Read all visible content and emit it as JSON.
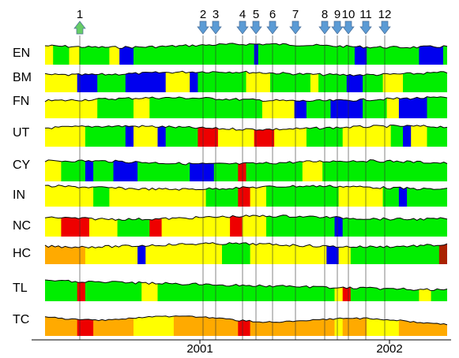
{
  "chart_data": {
    "type": "area",
    "x_axis": {
      "ticks": [
        "2001",
        "2002"
      ]
    },
    "colors": {
      "green": "#00ee00",
      "yellow": "#ffff00",
      "blue": "#0000ee",
      "red": "#ee0000",
      "orange": "#ffaa00",
      "dark_red": "#aa2200",
      "event_marker": "#5b9bd5",
      "highlight_marker": "#66cc66"
    },
    "event_markers": [
      {
        "label": "1",
        "direction": "up",
        "color": "highlight_marker"
      },
      {
        "label": "2",
        "direction": "down",
        "color": "event_marker"
      },
      {
        "label": "3",
        "direction": "down",
        "color": "event_marker"
      },
      {
        "label": "4",
        "direction": "down",
        "color": "event_marker"
      },
      {
        "label": "5",
        "direction": "down",
        "color": "event_marker"
      },
      {
        "label": "6",
        "direction": "down",
        "color": "event_marker"
      },
      {
        "label": "7",
        "direction": "down",
        "color": "event_marker"
      },
      {
        "label": "8",
        "direction": "down",
        "color": "event_marker"
      },
      {
        "label": "9",
        "direction": "down",
        "color": "event_marker"
      },
      {
        "label": "10",
        "direction": "down",
        "color": "event_marker"
      },
      {
        "label": "11",
        "direction": "down",
        "color": "event_marker"
      },
      {
        "label": "12",
        "direction": "down",
        "color": "event_marker"
      }
    ],
    "series": [
      {
        "name": "EN",
        "segments": [
          [
            "yellow",
            0.02
          ],
          [
            "green",
            0.06
          ],
          [
            "yellow",
            0.085
          ],
          [
            "green",
            0.16
          ],
          [
            "yellow",
            0.185
          ],
          [
            "blue",
            0.22
          ],
          [
            "green",
            0.52
          ],
          [
            "blue",
            0.53
          ],
          [
            "green",
            0.77
          ],
          [
            "blue",
            0.8
          ],
          [
            "green",
            0.93
          ],
          [
            "blue",
            0.99
          ],
          [
            "green",
            1.0
          ]
        ]
      },
      {
        "name": "BM",
        "segments": [
          [
            "yellow",
            0.08
          ],
          [
            "blue",
            0.13
          ],
          [
            "green",
            0.2
          ],
          [
            "blue",
            0.3
          ],
          [
            "yellow",
            0.36
          ],
          [
            "blue",
            0.38
          ],
          [
            "green",
            0.5
          ],
          [
            "yellow",
            0.56
          ],
          [
            "green",
            0.66
          ],
          [
            "yellow",
            0.68
          ],
          [
            "green",
            0.75
          ],
          [
            "blue",
            0.79
          ],
          [
            "green",
            0.84
          ],
          [
            "yellow",
            0.89
          ],
          [
            "green",
            1.0
          ]
        ]
      },
      {
        "name": "FN",
        "segments": [
          [
            "yellow",
            0.13
          ],
          [
            "green",
            0.22
          ],
          [
            "yellow",
            0.26
          ],
          [
            "green",
            0.54
          ],
          [
            "yellow",
            0.62
          ],
          [
            "blue",
            0.65
          ],
          [
            "green",
            0.71
          ],
          [
            "blue",
            0.79
          ],
          [
            "green",
            0.85
          ],
          [
            "yellow",
            0.88
          ],
          [
            "blue",
            0.95
          ],
          [
            "green",
            1.0
          ]
        ]
      },
      {
        "name": "UT",
        "segments": [
          [
            "yellow",
            0.1
          ],
          [
            "green",
            0.2
          ],
          [
            "blue",
            0.22
          ],
          [
            "yellow",
            0.28
          ],
          [
            "blue",
            0.3
          ],
          [
            "green",
            0.38
          ],
          [
            "red",
            0.43
          ],
          [
            "yellow",
            0.52
          ],
          [
            "red",
            0.57
          ],
          [
            "yellow",
            0.65
          ],
          [
            "green",
            0.74
          ],
          [
            "yellow",
            0.86
          ],
          [
            "green",
            0.89
          ],
          [
            "blue",
            0.91
          ],
          [
            "yellow",
            0.95
          ],
          [
            "green",
            1.0
          ]
        ]
      },
      {
        "name": "CY",
        "segments": [
          [
            "yellow",
            0.04
          ],
          [
            "green",
            0.1
          ],
          [
            "blue",
            0.12
          ],
          [
            "green",
            0.17
          ],
          [
            "blue",
            0.23
          ],
          [
            "green",
            0.36
          ],
          [
            "blue",
            0.42
          ],
          [
            "green",
            0.48
          ],
          [
            "red",
            0.5
          ],
          [
            "green",
            0.64
          ],
          [
            "yellow",
            0.69
          ],
          [
            "green",
            1.0
          ]
        ]
      },
      {
        "name": "IN",
        "segments": [
          [
            "yellow",
            0.12
          ],
          [
            "green",
            0.16
          ],
          [
            "yellow",
            0.4
          ],
          [
            "green",
            0.48
          ],
          [
            "red",
            0.51
          ],
          [
            "yellow",
            0.55
          ],
          [
            "green",
            0.73
          ],
          [
            "yellow",
            0.84
          ],
          [
            "green",
            0.88
          ],
          [
            "blue",
            0.9
          ],
          [
            "green",
            1.0
          ]
        ]
      },
      {
        "name": "NC",
        "segments": [
          [
            "yellow",
            0.04
          ],
          [
            "red",
            0.11
          ],
          [
            "yellow",
            0.18
          ],
          [
            "green",
            0.26
          ],
          [
            "red",
            0.29
          ],
          [
            "yellow",
            0.46
          ],
          [
            "red",
            0.49
          ],
          [
            "yellow",
            0.55
          ],
          [
            "green",
            0.72
          ],
          [
            "blue",
            0.74
          ],
          [
            "green",
            1.0
          ]
        ]
      },
      {
        "name": "HC",
        "segments": [
          [
            "orange",
            0.1
          ],
          [
            "yellow",
            0.23
          ],
          [
            "blue",
            0.25
          ],
          [
            "yellow",
            0.44
          ],
          [
            "green",
            0.51
          ],
          [
            "yellow",
            0.7
          ],
          [
            "blue",
            0.73
          ],
          [
            "yellow",
            0.76
          ],
          [
            "green",
            0.98
          ],
          [
            "dark_red",
            1.0
          ]
        ]
      },
      {
        "name": "TL",
        "segments": [
          [
            "green",
            0.08
          ],
          [
            "red",
            0.1
          ],
          [
            "green",
            0.24
          ],
          [
            "yellow",
            0.28
          ],
          [
            "green",
            0.72
          ],
          [
            "yellow",
            0.74
          ],
          [
            "red",
            0.76
          ],
          [
            "green",
            0.93
          ],
          [
            "yellow",
            0.96
          ],
          [
            "green",
            1.0
          ]
        ]
      },
      {
        "name": "TC",
        "segments": [
          [
            "orange",
            0.08
          ],
          [
            "red",
            0.12
          ],
          [
            "orange",
            0.22
          ],
          [
            "yellow",
            0.32
          ],
          [
            "orange",
            0.48
          ],
          [
            "red",
            0.51
          ],
          [
            "orange",
            0.72
          ],
          [
            "yellow",
            0.74
          ],
          [
            "orange",
            0.8
          ],
          [
            "yellow",
            0.88
          ],
          [
            "orange",
            1.0
          ]
        ]
      }
    ]
  }
}
